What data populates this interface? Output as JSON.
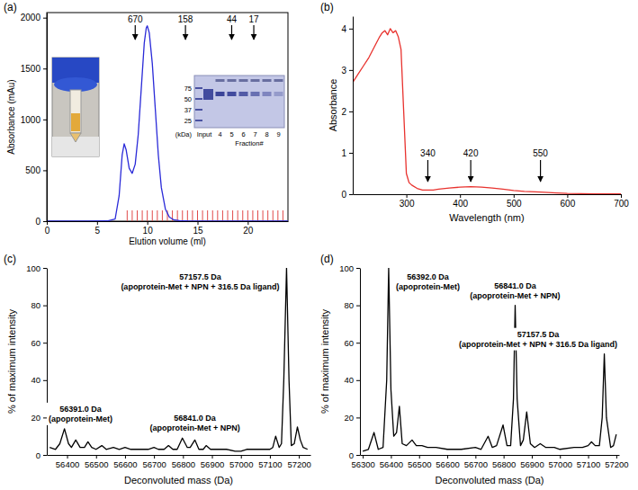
{
  "chart_data": [
    {
      "panel_label": "(a)",
      "type": "line",
      "x_label": "Elution volume (ml)",
      "y_label": "Absorbance (mAu)",
      "color": "#2a2ad8",
      "xlim": [
        0,
        24
      ],
      "ylim": [
        0,
        2050
      ],
      "xticks": [
        0,
        5,
        10,
        15,
        20
      ],
      "yticks": [
        0,
        500,
        1000,
        1500,
        2000
      ],
      "x": [
        0,
        2,
        4,
        6,
        6.8,
        7.2,
        7.5,
        7.7,
        7.9,
        8.2,
        8.5,
        8.8,
        9.1,
        9.4,
        9.7,
        9.9,
        10.0,
        10.2,
        10.5,
        10.8,
        11.1,
        11.4,
        11.8,
        12.2,
        12.6,
        13.2,
        14,
        16,
        18,
        20,
        22,
        24
      ],
      "values": [
        0,
        0,
        0,
        2,
        20,
        250,
        650,
        760,
        700,
        520,
        470,
        560,
        850,
        1300,
        1750,
        1900,
        1920,
        1850,
        1550,
        1100,
        650,
        330,
        120,
        40,
        15,
        5,
        2,
        1,
        1,
        1,
        1,
        1
      ],
      "standards": {
        "labels": [
          670,
          158,
          44,
          17
        ],
        "x": [
          8.8,
          13.8,
          18.4,
          20.6
        ]
      },
      "fractions": [
        8.0,
        8.5,
        9.0,
        9.5,
        10.0,
        10.5,
        11.0,
        11.5,
        12.0,
        12.5,
        13.0,
        13.5,
        14.0,
        14.5,
        15.0,
        15.5,
        16.0,
        16.5,
        17.0,
        17.5,
        18.0,
        18.5,
        19.0,
        19.5,
        20.0,
        20.5,
        21.0,
        21.5,
        22.0,
        22.5,
        23.0,
        23.5
      ],
      "gel_inset": {
        "marker_title": "(kDa)",
        "markers": [
          75,
          50,
          37,
          25
        ],
        "lanes": [
          "Input",
          "4",
          "5",
          "6",
          "7",
          "8",
          "9"
        ],
        "lane_title": "Fraction#"
      }
    },
    {
      "panel_label": "(b)",
      "type": "line",
      "x_label": "Wavelength (nm)",
      "y_label": "Absorbance",
      "color": "#e8322e",
      "xlim": [
        200,
        700
      ],
      "ylim": [
        0,
        4.3
      ],
      "xticks": [
        300,
        400,
        500,
        600,
        700
      ],
      "yticks": [
        0,
        1,
        2,
        3,
        4
      ],
      "x": [
        200,
        210,
        220,
        230,
        240,
        250,
        255,
        260,
        265,
        270,
        275,
        280,
        285,
        290,
        295,
        300,
        305,
        310,
        320,
        330,
        340,
        350,
        360,
        380,
        400,
        420,
        440,
        460,
        480,
        500,
        520,
        550,
        580,
        600,
        650,
        700
      ],
      "values": [
        2.7,
        2.9,
        3.1,
        3.3,
        3.55,
        3.8,
        3.9,
        3.95,
        3.85,
        4.0,
        3.9,
        3.95,
        3.8,
        3.5,
        2.0,
        0.5,
        0.28,
        0.22,
        0.14,
        0.1,
        0.1,
        0.1,
        0.12,
        0.15,
        0.17,
        0.18,
        0.17,
        0.15,
        0.12,
        0.09,
        0.07,
        0.05,
        0.03,
        0.02,
        0.01,
        0.01
      ],
      "annotations": [
        340,
        420,
        550
      ]
    },
    {
      "panel_label": "(c)",
      "type": "line",
      "x_label": "Deconvoluted mass (Da)",
      "y_label": "% of maximum intensity",
      "color": "#000000",
      "xlim": [
        56330,
        57240
      ],
      "ylim": [
        0,
        100
      ],
      "xticks": [
        56400,
        56500,
        56600,
        56700,
        56800,
        56900,
        57000,
        57100,
        57200
      ],
      "yticks": [
        0,
        20,
        40,
        60,
        80,
        100
      ],
      "x": [
        56340,
        56360,
        56375,
        56391,
        56405,
        56415,
        56430,
        56445,
        56460,
        56472,
        56485,
        56500,
        56520,
        56535,
        56560,
        56580,
        56600,
        56620,
        56650,
        56680,
        56700,
        56715,
        56735,
        56750,
        56765,
        56780,
        56798,
        56815,
        56825,
        56841,
        56855,
        56870,
        56880,
        56895,
        56920,
        56950,
        56980,
        57000,
        57020,
        57050,
        57080,
        57100,
        57110,
        57120,
        57132,
        57140,
        57148,
        57157.5,
        57166,
        57174,
        57184,
        57195,
        57205,
        57215,
        57230
      ],
      "values": [
        4,
        3,
        6,
        14,
        6,
        4,
        8,
        4,
        4,
        7,
        4,
        3,
        5,
        3,
        4,
        3,
        4,
        3,
        3,
        3,
        4,
        3,
        3,
        5,
        3,
        3,
        9,
        4,
        4,
        8,
        3,
        3,
        5,
        3,
        3,
        3,
        2,
        2,
        3,
        3,
        3,
        3,
        4,
        10,
        4,
        6,
        40,
        100,
        40,
        5,
        6,
        15,
        8,
        4,
        3
      ],
      "annotations": [
        {
          "x": 56391,
          "y": 14,
          "lines": [
            "56391.0 Da",
            "(apoprotein-Met)"
          ]
        },
        {
          "x": 56841,
          "y": 8,
          "lines": [
            "56841.0 Da",
            "(apoprotein-Met + NPN)"
          ]
        },
        {
          "x": 57157.5,
          "y": 100,
          "lines": [
            "57157.5 Da",
            "(apoprotein-Met + NPN + 316.5 Da ligand)"
          ]
        }
      ]
    },
    {
      "panel_label": "(d)",
      "type": "line",
      "x_label": "Deconvoluted mass (Da)",
      "y_label": "% of maximum intensity",
      "color": "#000000",
      "xlim": [
        56290,
        57210
      ],
      "ylim": [
        0,
        100
      ],
      "xticks": [
        56300,
        56400,
        56500,
        56600,
        56700,
        56800,
        56900,
        57000,
        57100,
        57200
      ],
      "yticks": [
        0,
        20,
        40,
        60,
        80,
        100
      ],
      "x": [
        56300,
        56320,
        56340,
        56355,
        56372,
        56385,
        56392,
        56400,
        56410,
        56420,
        56430,
        56440,
        56455,
        56475,
        56490,
        56510,
        56530,
        56560,
        56600,
        56650,
        56700,
        56720,
        56745,
        56760,
        56775,
        56798,
        56812,
        56825,
        56835,
        56841,
        56848,
        56860,
        56870,
        56882,
        56895,
        56910,
        56930,
        56950,
        56980,
        57000,
        57050,
        57080,
        57100,
        57112,
        57125,
        57140,
        57150,
        57157.5,
        57165,
        57180,
        57190,
        57200
      ],
      "values": [
        2,
        3,
        12,
        3,
        4,
        40,
        100,
        35,
        10,
        12,
        26,
        6,
        5,
        8,
        5,
        5,
        4,
        4,
        3,
        3,
        4,
        3,
        10,
        4,
        5,
        16,
        5,
        5,
        30,
        80,
        30,
        5,
        8,
        23,
        6,
        4,
        6,
        4,
        4,
        3,
        4,
        4,
        5,
        7,
        5,
        5,
        20,
        54,
        20,
        4,
        5,
        11
      ],
      "annotations": [
        {
          "x": 56392,
          "y": 100,
          "lines": [
            "56392.0 Da",
            "(apoprotein-Met)"
          ]
        },
        {
          "x": 56841,
          "y": 80,
          "lines": [
            "56841.0 Da",
            "(apoprotein-Met + NPN)"
          ]
        },
        {
          "x": 57157.5,
          "y": 54,
          "lines": [
            "57157.5 Da",
            "(apoprotein-Met + NPN + 316.5 Da ligand)"
          ]
        }
      ]
    }
  ]
}
